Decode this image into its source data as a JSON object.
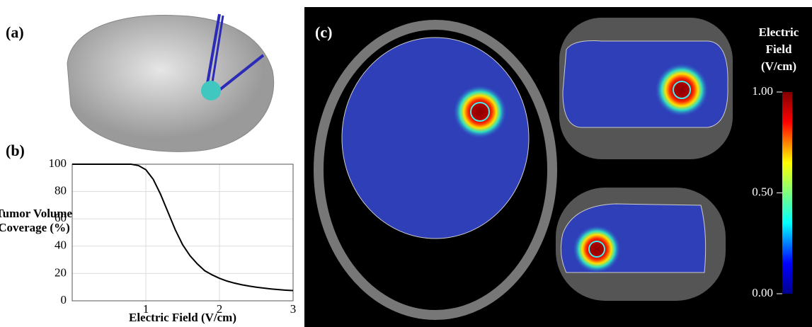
{
  "panels": {
    "a": "(a)",
    "b": "(b)",
    "c": "(c)"
  },
  "chart_data": {
    "type": "line",
    "xlabel": "Electric Field (V/cm)",
    "ylabel": [
      "Tumor Volume",
      "Coverage (%)"
    ],
    "x": [
      0,
      0.1,
      0.2,
      0.3,
      0.4,
      0.5,
      0.6,
      0.7,
      0.8,
      0.9,
      1.0,
      1.1,
      1.2,
      1.3,
      1.4,
      1.5,
      1.6,
      1.7,
      1.8,
      1.9,
      2.0,
      2.1,
      2.2,
      2.3,
      2.4,
      2.5,
      2.6,
      2.7,
      2.8,
      2.9,
      3.0
    ],
    "series": [
      {
        "color": "#000000",
        "values": [
          100,
          100,
          100,
          100,
          100,
          100,
          100,
          100,
          100,
          99,
          96,
          89,
          78,
          65,
          52,
          41,
          33,
          27,
          22,
          19,
          16.5,
          14.5,
          13,
          11.8,
          10.8,
          10,
          9.3,
          8.7,
          8.2,
          7.8,
          7.5
        ]
      }
    ],
    "xlim": [
      0,
      3
    ],
    "ylim": [
      0,
      100
    ],
    "xticks": [
      1,
      2,
      3
    ],
    "yticks": [
      0,
      20,
      40,
      60,
      80,
      100
    ],
    "grid": true
  },
  "colorbar": {
    "title": [
      "Electric",
      "Field",
      "(V/cm)"
    ],
    "lim": [
      0,
      1
    ],
    "ticks": [
      {
        "value": 0,
        "label": "0.00"
      },
      {
        "value": 0.5,
        "label": "0.50"
      },
      {
        "value": 1,
        "label": "1.00"
      }
    ]
  }
}
